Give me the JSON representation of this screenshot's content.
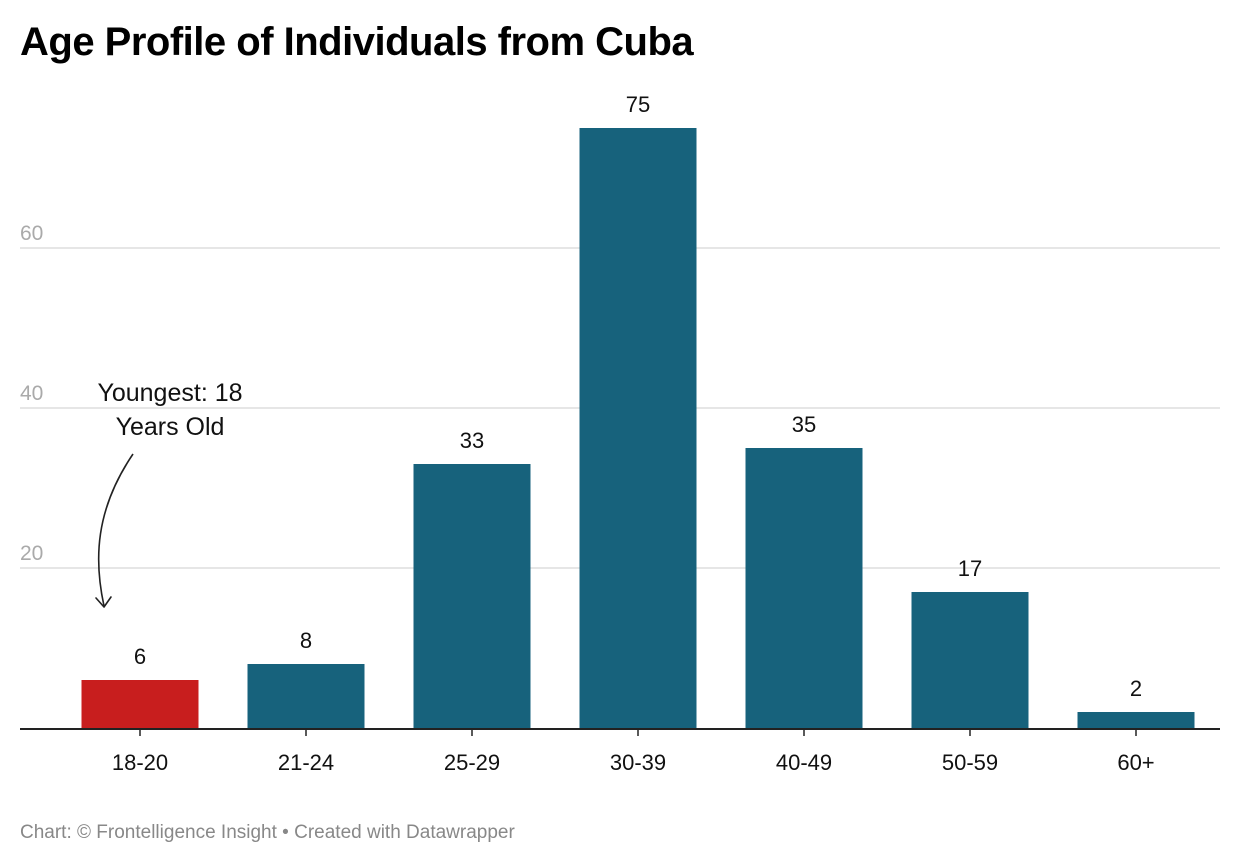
{
  "chart_data": {
    "type": "bar",
    "title": "Age Profile of Individuals from Cuba",
    "categories": [
      "18-20",
      "21-24",
      "25-29",
      "30-39",
      "40-49",
      "50-59",
      "60+"
    ],
    "values": [
      6,
      8,
      33,
      75,
      35,
      17,
      2
    ],
    "highlight_index": 0,
    "ylim": [
      0,
      75
    ],
    "yticks": [
      20,
      40,
      60
    ],
    "xlabel": "",
    "ylabel": "",
    "grid": true,
    "annotation": {
      "line1": "Youngest: 18",
      "line2": "Years Old"
    }
  },
  "colors": {
    "bar": "#17627c",
    "highlight": "#c81e1e",
    "grid": "#dddddd",
    "axis": "#222222",
    "tick_label": "#aaaaaa",
    "value_label": "#111111"
  },
  "footer": "Chart: © Frontelligence Insight • Created with Datawrapper"
}
